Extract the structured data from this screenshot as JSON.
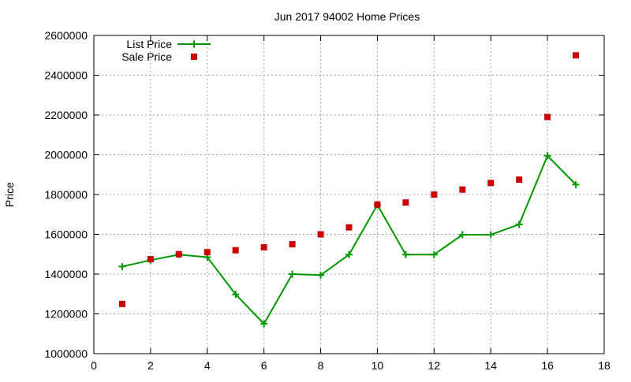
{
  "chart_data": {
    "type": "line",
    "title": "Jun 2017 94002 Home Prices",
    "xlabel": "",
    "ylabel": "Price",
    "xlim": [
      0,
      18
    ],
    "ylim": [
      1000000,
      2600000
    ],
    "xticks": [
      0,
      2,
      4,
      6,
      8,
      10,
      12,
      14,
      16,
      18
    ],
    "yticks": [
      1000000,
      1200000,
      1400000,
      1600000,
      1800000,
      2000000,
      2200000,
      2400000,
      2600000
    ],
    "grid": true,
    "legend_position": "top-left",
    "series": [
      {
        "name": "List Price",
        "style": "line-with-plus-markers",
        "color": "#009900",
        "x": [
          1,
          2,
          3,
          4,
          5,
          6,
          7,
          8,
          9,
          10,
          11,
          12,
          13,
          14,
          15,
          16,
          17
        ],
        "values": [
          1438000,
          1470000,
          1498000,
          1485000,
          1298000,
          1150000,
          1400000,
          1395000,
          1498000,
          1748000,
          1498000,
          1498000,
          1598000,
          1598000,
          1650000,
          1995000,
          1850000
        ]
      },
      {
        "name": "Sale Price",
        "style": "square-markers",
        "color": "#cc0000",
        "x": [
          1,
          2,
          3,
          4,
          5,
          6,
          7,
          8,
          9,
          10,
          11,
          12,
          13,
          14,
          15,
          16,
          17
        ],
        "values": [
          1250000,
          1475000,
          1500000,
          1510000,
          1520000,
          1535000,
          1550000,
          1600000,
          1635000,
          1750000,
          1760000,
          1800000,
          1825000,
          1858000,
          1875000,
          2190000,
          2500000
        ]
      }
    ]
  }
}
